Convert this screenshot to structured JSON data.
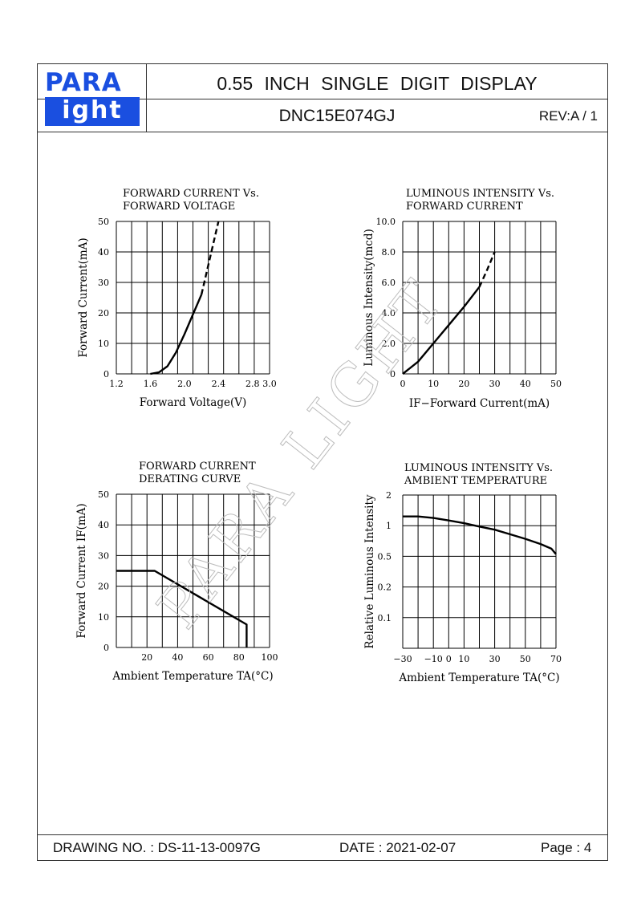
{
  "header": {
    "logo_top": "PARA",
    "logo_bottom": "ight",
    "title": "0.55   INCH   SINGLE   DIGIT   DISPLAY",
    "part_number": "DNC15E074GJ",
    "revision": "REV:A / 1"
  },
  "footer": {
    "drawing_no": "DRAWING NO. : DS-11-13-0097G",
    "date": "DATE : 2021-02-07",
    "page": "Page : 4"
  },
  "watermark": "PARA LIGHT",
  "chart_data": [
    {
      "type": "line",
      "title": "FORWARD CURRENT Vs. FORWARD VOLTAGE",
      "title_lines": [
        "FORWARD  CURRENT  Vs.",
        "FORWARD  VOLTAGE"
      ],
      "xlabel": "Forward Voltage(V)",
      "ylabel": "Forward Current(mA)",
      "xlim": [
        1.2,
        3.0
      ],
      "ylim": [
        0,
        50
      ],
      "x_ticks": [
        "1.2",
        "1.6",
        "2.0",
        "2.4",
        "2.8",
        "3.0"
      ],
      "x_tick_values": [
        1.2,
        1.6,
        2.0,
        2.4,
        2.8,
        3.0
      ],
      "y_ticks": [
        "0",
        "10",
        "20",
        "30",
        "40",
        "50"
      ],
      "y_tick_values": [
        0,
        10,
        20,
        30,
        40,
        50
      ],
      "grid": true,
      "x_grid_count": 10,
      "y_grid_count": 5,
      "series": [
        {
          "style": "solid",
          "points": [
            [
              1.6,
              0
            ],
            [
              1.7,
              0.5
            ],
            [
              1.8,
              2.5
            ],
            [
              1.9,
              7
            ],
            [
              2.0,
              13
            ],
            [
              2.1,
              19.5
            ],
            [
              2.2,
              26
            ]
          ]
        },
        {
          "style": "dashed",
          "points": [
            [
              2.2,
              26
            ],
            [
              2.3,
              38
            ],
            [
              2.4,
              50
            ]
          ]
        }
      ]
    },
    {
      "type": "line",
      "title": "LUMINOUS INTENSITY Vs. FORWARD CURRENT",
      "title_lines": [
        "LUMINOUS  INTENSITY  Vs.",
        "FORWARD  CURRENT"
      ],
      "xlabel": "IF−Forward  Current(mA)",
      "ylabel": "Luminous Intensity(mcd)",
      "xlim": [
        0,
        50
      ],
      "ylim": [
        0,
        10
      ],
      "x_ticks": [
        "0",
        "10",
        "20",
        "30",
        "40",
        "50"
      ],
      "x_tick_values": [
        0,
        10,
        20,
        30,
        40,
        50
      ],
      "y_ticks": [
        "0",
        "2.0",
        "4.0",
        "6.0",
        "8.0",
        "10.0"
      ],
      "y_tick_values": [
        0,
        2,
        4,
        6,
        8,
        10
      ],
      "grid": true,
      "x_grid_count": 10,
      "y_grid_count": 5,
      "series": [
        {
          "style": "solid",
          "points": [
            [
              0,
              0
            ],
            [
              5,
              0.8
            ],
            [
              10,
              2
            ],
            [
              15,
              3.2
            ],
            [
              20,
              4.4
            ],
            [
              25,
              5.7
            ]
          ]
        },
        {
          "style": "dashed",
          "points": [
            [
              25,
              5.7
            ],
            [
              27.5,
              6.8
            ],
            [
              30,
              8
            ]
          ]
        }
      ]
    },
    {
      "type": "line",
      "title": "FORWARD CURRENT DERATING CURVE",
      "title_lines": [
        "FORWARD  CURRENT",
        "DERATING  CURVE"
      ],
      "xlabel": "Ambient  Temperature  TA(°C)",
      "ylabel": "Forward  Current  IF(mA)",
      "xlim": [
        0,
        100
      ],
      "ylim": [
        0,
        50
      ],
      "x_ticks": [
        "20",
        "40",
        "60",
        "80",
        "100"
      ],
      "x_tick_values": [
        20,
        40,
        60,
        80,
        100
      ],
      "y_ticks": [
        "0",
        "10",
        "20",
        "30",
        "40",
        "50"
      ],
      "y_tick_values": [
        0,
        10,
        20,
        30,
        40,
        50
      ],
      "grid": true,
      "x_grid_count": 10,
      "y_grid_count": 5,
      "series": [
        {
          "style": "solid",
          "points": [
            [
              0,
              25
            ],
            [
              25,
              25
            ],
            [
              85,
              7.5
            ],
            [
              85,
              0
            ]
          ]
        }
      ]
    },
    {
      "type": "line",
      "title": "LUMINOUS INTENSITY Vs. AMBIENT TEMPERATURE",
      "title_lines": [
        "LUMINOUS  INTENSITY  Vs.",
        "AMBIENT  TEMPERATURE"
      ],
      "xlabel": "Ambient  Temperature  TA(°C)",
      "ylabel": "Relative  Luminous  Intensity",
      "xlim": [
        -30,
        70
      ],
      "ylim": [
        0,
        5
      ],
      "x_ticks": [
        "−30",
        "−10",
        "0",
        "10",
        "30",
        "50",
        "70"
      ],
      "x_tick_values": [
        -30,
        -10,
        0,
        10,
        30,
        50,
        70
      ],
      "y_ticks": [
        "0.1",
        "0.2",
        "0.5",
        "1",
        "2"
      ],
      "y_tick_values": [
        1,
        2,
        3,
        4,
        5
      ],
      "grid": true,
      "x_grid_count": 10,
      "y_grid_count": 5,
      "series": [
        {
          "style": "solid",
          "points": [
            [
              -30,
              4.3
            ],
            [
              -20,
              4.3
            ],
            [
              -10,
              4.25
            ],
            [
              0,
              4.17
            ],
            [
              10,
              4.08
            ],
            [
              20,
              3.97
            ],
            [
              30,
              3.87
            ],
            [
              40,
              3.72
            ],
            [
              50,
              3.57
            ],
            [
              60,
              3.4
            ],
            [
              67,
              3.25
            ],
            [
              70,
              3.07
            ]
          ]
        }
      ]
    }
  ]
}
